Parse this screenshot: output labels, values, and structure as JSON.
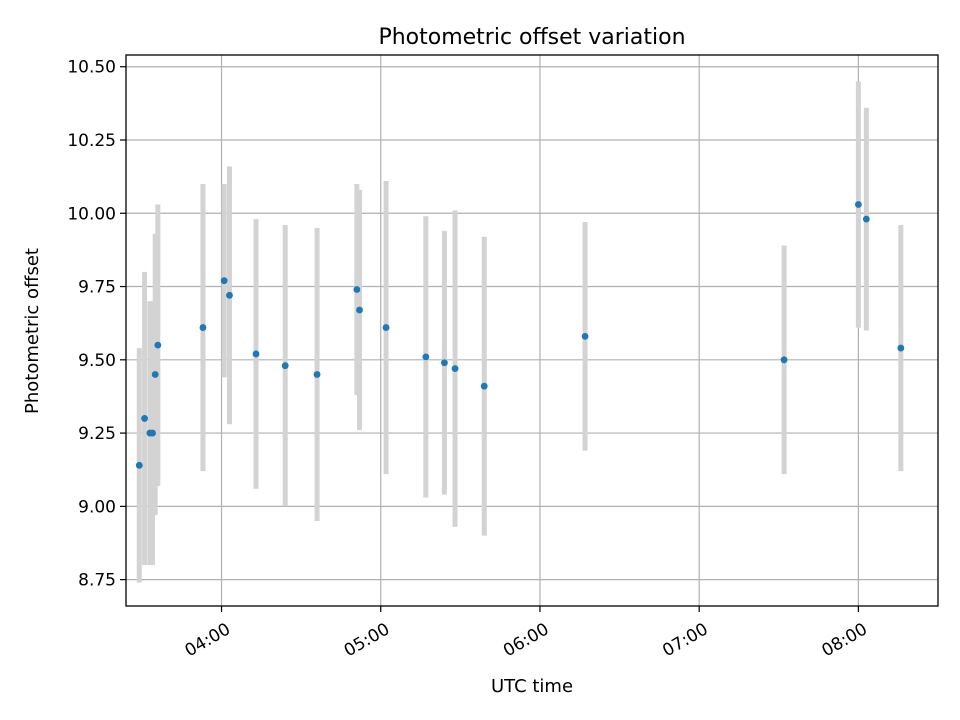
{
  "chart_data": {
    "type": "scatter",
    "title": "Photometric offset variation",
    "xlabel": "UTC time",
    "ylabel": "Photometric offset",
    "x_ticks": [
      "04:00",
      "05:00",
      "06:00",
      "07:00",
      "08:00"
    ],
    "y_ticks": [
      "8.75",
      "9.00",
      "9.25",
      "9.50",
      "9.75",
      "10.00",
      "10.25",
      "10.50"
    ],
    "xlim": [
      "03:24",
      "08:30"
    ],
    "ylim": [
      8.66,
      10.54
    ],
    "grid": true,
    "point_color": "#1f77b4",
    "errorbar_color": "#d3d3d3",
    "points": [
      {
        "x": "03:29",
        "y": 9.14,
        "err": 0.4
      },
      {
        "x": "03:31",
        "y": 9.3,
        "err": 0.5
      },
      {
        "x": "03:33",
        "y": 9.25,
        "err": 0.45
      },
      {
        "x": "03:34",
        "y": 9.25,
        "err": 0.45
      },
      {
        "x": "03:35",
        "y": 9.45,
        "err": 0.48
      },
      {
        "x": "03:36",
        "y": 9.55,
        "err": 0.48
      },
      {
        "x": "03:53",
        "y": 9.61,
        "err": 0.49
      },
      {
        "x": "04:01",
        "y": 9.77,
        "err": 0.33
      },
      {
        "x": "04:03",
        "y": 9.72,
        "err": 0.44
      },
      {
        "x": "04:13",
        "y": 9.52,
        "err": 0.46
      },
      {
        "x": "04:24",
        "y": 9.48,
        "err": 0.48
      },
      {
        "x": "04:36",
        "y": 9.45,
        "err": 0.5
      },
      {
        "x": "04:51",
        "y": 9.74,
        "err": 0.36
      },
      {
        "x": "04:52",
        "y": 9.67,
        "err": 0.41
      },
      {
        "x": "05:02",
        "y": 9.61,
        "err": 0.5
      },
      {
        "x": "05:17",
        "y": 9.51,
        "err": 0.48
      },
      {
        "x": "05:24",
        "y": 9.49,
        "err": 0.45
      },
      {
        "x": "05:28",
        "y": 9.47,
        "err": 0.54
      },
      {
        "x": "05:39",
        "y": 9.41,
        "err": 0.51
      },
      {
        "x": "06:17",
        "y": 9.58,
        "err": 0.39
      },
      {
        "x": "07:32",
        "y": 9.5,
        "err": 0.39
      },
      {
        "x": "08:00",
        "y": 10.03,
        "err": 0.42
      },
      {
        "x": "08:03",
        "y": 9.98,
        "err": 0.38
      },
      {
        "x": "08:16",
        "y": 9.54,
        "err": 0.42
      }
    ]
  }
}
